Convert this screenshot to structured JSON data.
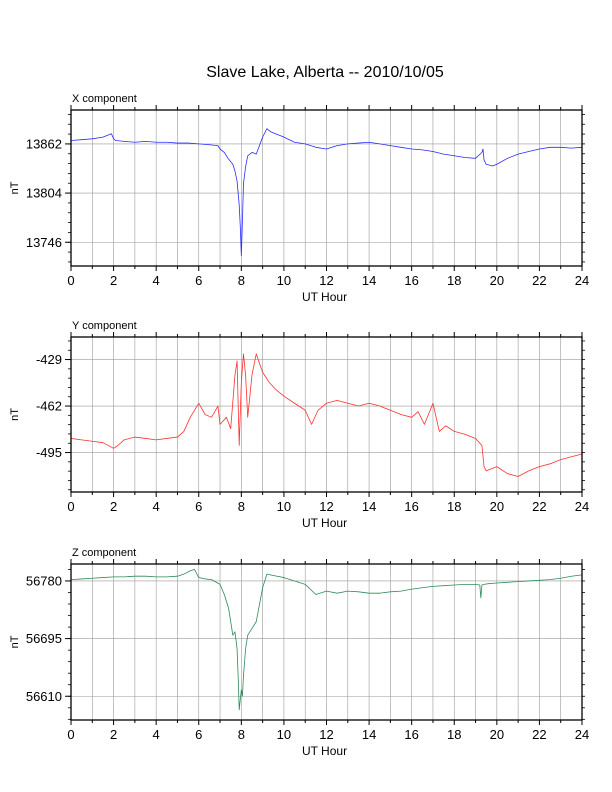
{
  "title": "Slave Lake, Alberta -- 2010/10/05",
  "chart_data": [
    {
      "type": "line",
      "panel_label": "X component",
      "xlabel": "UT Hour",
      "ylabel": "nT",
      "xlim": [
        0,
        24
      ],
      "ylim": [
        13718,
        13902
      ],
      "xticks": [
        0,
        2,
        4,
        6,
        8,
        10,
        12,
        14,
        16,
        18,
        20,
        22,
        24
      ],
      "yticks": [
        13746,
        13804,
        13862
      ],
      "grid": true,
      "color": "#2b2bff",
      "series": [
        {
          "x": [
            0,
            0.5,
            1,
            1.5,
            1.9,
            2,
            2.1,
            2.5,
            3,
            3.5,
            4,
            4.5,
            5,
            5.5,
            6,
            6.5,
            6.9,
            7,
            7.2,
            7.4,
            7.6,
            7.7,
            7.8,
            7.9,
            7.95,
            8.0,
            8.05,
            8.1,
            8.2,
            8.3,
            8.5,
            8.7,
            9.0,
            9.2,
            9.4,
            9.6,
            9.8,
            10,
            10.5,
            11,
            11.5,
            12,
            12.5,
            13,
            13.5,
            14,
            14.5,
            15,
            15.5,
            16,
            16.5,
            17,
            17.5,
            18,
            18.5,
            19,
            19.3,
            19.35,
            19.4,
            19.5,
            19.8,
            20,
            20.5,
            21,
            21.5,
            22,
            22.5,
            23,
            23.5,
            24
          ],
          "y": [
            13866,
            13867,
            13868,
            13870,
            13874,
            13868,
            13866,
            13865,
            13864,
            13865,
            13864,
            13864,
            13863,
            13863,
            13862,
            13861,
            13860,
            13856,
            13852,
            13844,
            13838,
            13830,
            13818,
            13790,
            13765,
            13730,
            13770,
            13815,
            13835,
            13848,
            13852,
            13850,
            13870,
            13880,
            13876,
            13874,
            13872,
            13870,
            13864,
            13862,
            13858,
            13856,
            13860,
            13862,
            13863,
            13864,
            13862,
            13860,
            13858,
            13856,
            13855,
            13853,
            13850,
            13848,
            13846,
            13845,
            13852,
            13856,
            13843,
            13838,
            13836,
            13838,
            13845,
            13850,
            13853,
            13856,
            13858,
            13858,
            13857,
            13858
          ]
        }
      ]
    },
    {
      "type": "line",
      "panel_label": "Y component",
      "xlabel": "UT Hour",
      "ylabel": "nT",
      "xlim": [
        0,
        24
      ],
      "ylim": [
        -523,
        -413
      ],
      "xticks": [
        0,
        2,
        4,
        6,
        8,
        10,
        12,
        14,
        16,
        18,
        20,
        22,
        24
      ],
      "yticks": [
        -429,
        -462,
        -495
      ],
      "grid": true,
      "color": "#ff3030",
      "series": [
        {
          "x": [
            0,
            0.5,
            1,
            1.5,
            2,
            2.2,
            2.5,
            3,
            3.5,
            4,
            4.5,
            5,
            5.3,
            5.6,
            5.8,
            6,
            6.3,
            6.6,
            6.9,
            7,
            7.3,
            7.5,
            7.7,
            7.8,
            7.9,
            8.0,
            8.1,
            8.2,
            8.3,
            8.5,
            8.7,
            9,
            9.3,
            9.6,
            10,
            10.5,
            11,
            11.3,
            11.6,
            12,
            12.5,
            13,
            13.5,
            14,
            14.5,
            15,
            15.5,
            16,
            16.3,
            16.6,
            17,
            17.3,
            17.6,
            18,
            18.5,
            19,
            19.3,
            19.4,
            19.5,
            20,
            20.5,
            21,
            21.5,
            22,
            22.5,
            23,
            23.5,
            24
          ],
          "y": [
            -485,
            -486,
            -487,
            -488,
            -492,
            -490,
            -486,
            -484,
            -485,
            -486,
            -485,
            -484,
            -480,
            -470,
            -465,
            -460,
            -468,
            -470,
            -462,
            -475,
            -470,
            -478,
            -440,
            -430,
            -490,
            -445,
            -425,
            -440,
            -470,
            -440,
            -425,
            -438,
            -445,
            -450,
            -455,
            -460,
            -465,
            -475,
            -465,
            -460,
            -458,
            -460,
            -462,
            -460,
            -462,
            -465,
            -468,
            -470,
            -466,
            -475,
            -460,
            -480,
            -476,
            -480,
            -482,
            -485,
            -490,
            -505,
            -508,
            -505,
            -510,
            -512,
            -508,
            -505,
            -503,
            -500,
            -498,
            -496
          ]
        }
      ]
    },
    {
      "type": "line",
      "panel_label": "Z component",
      "xlabel": "UT Hour",
      "ylabel": "nT",
      "xlim": [
        0,
        24
      ],
      "ylim": [
        56575,
        56805
      ],
      "xticks": [
        0,
        2,
        4,
        6,
        8,
        10,
        12,
        14,
        16,
        18,
        20,
        22,
        24
      ],
      "yticks": [
        56610,
        56695,
        56780
      ],
      "grid": true,
      "color": "#2e8b57",
      "series": [
        {
          "x": [
            0,
            0.5,
            1,
            1.5,
            2,
            2.5,
            3,
            3.5,
            4,
            4.5,
            5,
            5.3,
            5.6,
            5.8,
            6,
            6.3,
            6.6,
            7,
            7.2,
            7.4,
            7.6,
            7.7,
            7.8,
            7.85,
            7.9,
            7.95,
            8.0,
            8.05,
            8.1,
            8.2,
            8.3,
            8.5,
            8.7,
            9,
            9.2,
            9.5,
            10,
            10.5,
            11,
            11.5,
            12,
            12.5,
            13,
            13.5,
            14,
            14.5,
            15,
            15.5,
            16,
            16.5,
            17,
            17.5,
            18,
            18.5,
            19,
            19.2,
            19.25,
            19.3,
            19.4,
            19.6,
            20,
            20.5,
            21,
            21.5,
            22,
            22.5,
            23,
            23.5,
            24
          ],
          "y": [
            56782,
            56783,
            56784,
            56785,
            56786,
            56786,
            56787,
            56787,
            56786,
            56786,
            56787,
            56790,
            56795,
            56797,
            56785,
            56783,
            56782,
            56775,
            56760,
            56740,
            56700,
            56705,
            56680,
            56640,
            56590,
            56605,
            56620,
            56610,
            56640,
            56680,
            56700,
            56710,
            56720,
            56770,
            56790,
            56788,
            56785,
            56780,
            56775,
            56760,
            56765,
            56762,
            56765,
            56764,
            56762,
            56762,
            56764,
            56765,
            56768,
            56770,
            56772,
            56773,
            56774,
            56775,
            56775,
            56774,
            56755,
            56774,
            56775,
            56776,
            56777,
            56778,
            56779,
            56780,
            56781,
            56782,
            56784,
            56787,
            56789
          ]
        }
      ]
    }
  ]
}
